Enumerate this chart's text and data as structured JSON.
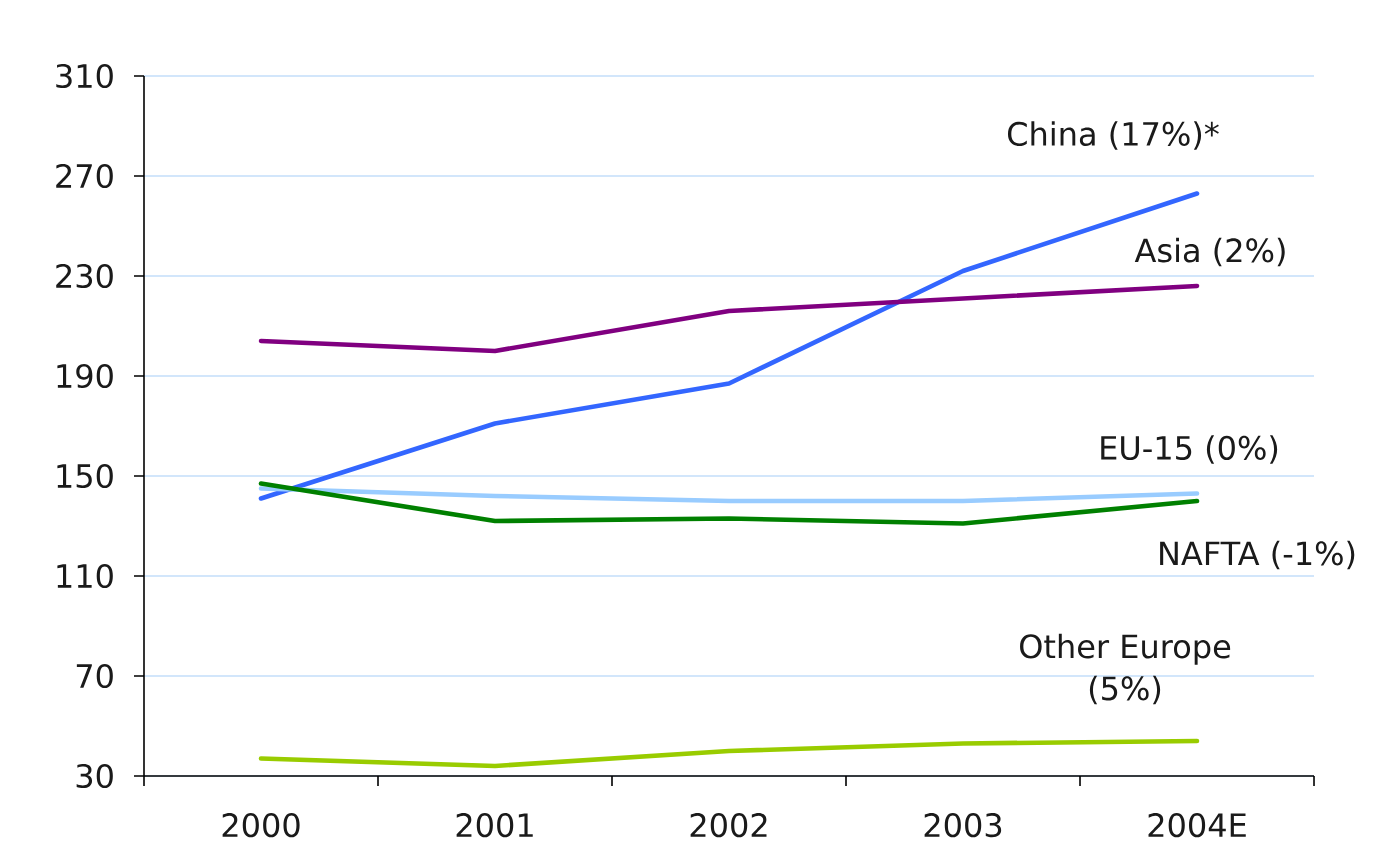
{
  "chart_data": {
    "type": "line",
    "categories": [
      "2000",
      "2001",
      "2002",
      "2003",
      "2004E"
    ],
    "ylim": [
      30,
      310
    ],
    "yticks": [
      30,
      70,
      110,
      150,
      190,
      230,
      270,
      310
    ],
    "grid": "y",
    "series": [
      {
        "name": "China (17%)*",
        "color": "#3366ff",
        "values": [
          141,
          171,
          187,
          232,
          263
        ]
      },
      {
        "name": "Asia (2%)",
        "color": "#800080",
        "values": [
          204,
          200,
          216,
          221,
          226
        ]
      },
      {
        "name": "EU-15 (0%)",
        "color": "#99ccff",
        "values": [
          145,
          142,
          140,
          140,
          143
        ]
      },
      {
        "name": "NAFTA (-1%)",
        "color": "#008000",
        "values": [
          147,
          132,
          133,
          131,
          140
        ]
      },
      {
        "name": "Other Europe (5%)",
        "color": "#99cc00",
        "values": [
          37,
          34,
          40,
          43,
          44
        ]
      }
    ]
  }
}
